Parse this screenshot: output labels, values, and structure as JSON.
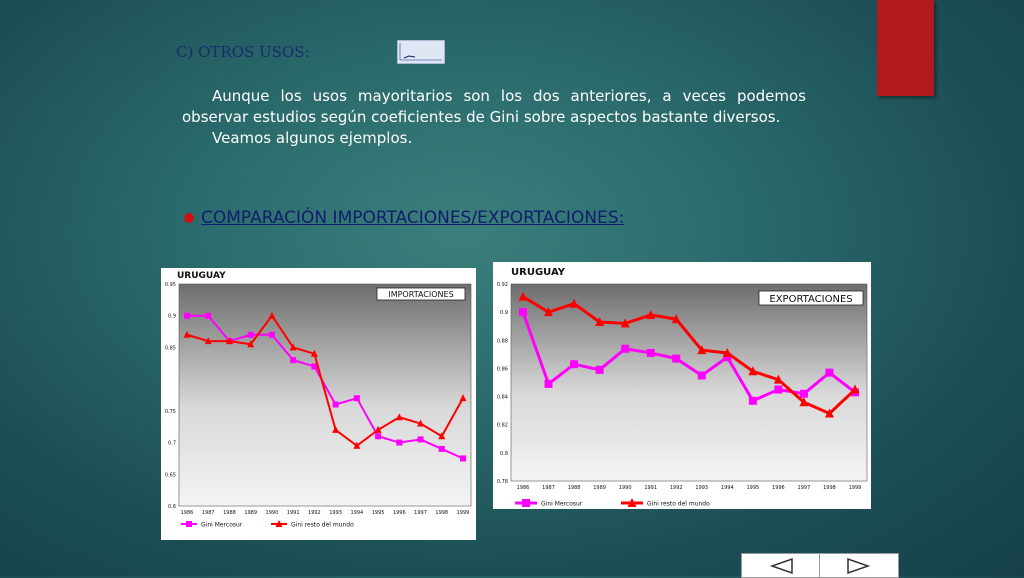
{
  "slide": {
    "section_title": "C) OTROS USOS:",
    "paragraph1": "Aunque los usos mayoritarios son los dos anteriores, a veces podemos observar estudios según coeficientes de Gini sobre aspectos bastante diversos.",
    "paragraph2": "Veamos algunos ejemplos.",
    "heading": "COMPARACIÓN IMPORTACIONES/EXPORTACIONES:"
  },
  "colors": {
    "series1": "#ff00ff",
    "series2": "#ff0000",
    "accent_tab": "#b0191d",
    "heading": "#101d6e"
  },
  "chart_data": [
    {
      "type": "line",
      "title": "URUGUAY",
      "annotation": "IMPORTACIONES",
      "x": [
        "1986",
        "1987",
        "1988",
        "1989",
        "1990",
        "1991",
        "1992",
        "1993",
        "1994",
        "1995",
        "1996",
        "1997",
        "1998",
        "1999"
      ],
      "ylim": [
        0.6,
        0.95
      ],
      "yticks": [
        "0.95",
        "0.9",
        "0.85",
        "0.75",
        "0.7",
        "0.65",
        "0.6"
      ],
      "ytick_values": [
        0.95,
        0.9,
        0.85,
        0.75,
        0.7,
        0.65,
        0.6
      ],
      "series": [
        {
          "name": "Gini Mercosur",
          "marker": "square",
          "values": [
            0.9,
            0.9,
            0.86,
            0.87,
            0.87,
            0.83,
            0.82,
            0.76,
            0.77,
            0.71,
            0.7,
            0.705,
            0.69,
            0.675
          ]
        },
        {
          "name": "Gini resto del mundo",
          "marker": "triangle",
          "values": [
            0.87,
            0.86,
            0.86,
            0.855,
            0.9,
            0.85,
            0.84,
            0.72,
            0.695,
            0.72,
            0.74,
            0.73,
            0.71,
            0.77
          ]
        }
      ],
      "legend": "bottom"
    },
    {
      "type": "line",
      "title": "URUGUAY",
      "annotation": "EXPORTACIONES",
      "x": [
        "1986",
        "1987",
        "1988",
        "1989",
        "1990",
        "1991",
        "1992",
        "1993",
        "1994",
        "1995",
        "1996",
        "1997",
        "1998",
        "1999"
      ],
      "ylim": [
        0.78,
        0.92
      ],
      "yticks": [
        "0.92",
        "0.9",
        "0.88",
        "0.86",
        "0.84",
        "0.82",
        "0.8",
        "0.78"
      ],
      "ytick_values": [
        0.92,
        0.9,
        0.88,
        0.86,
        0.84,
        0.82,
        0.8,
        0.78
      ],
      "series": [
        {
          "name": "Gini Mercosur",
          "marker": "square",
          "values": [
            0.9,
            0.849,
            0.863,
            0.859,
            0.874,
            0.871,
            0.867,
            0.855,
            0.868,
            0.837,
            0.845,
            0.842,
            0.857,
            0.843
          ]
        },
        {
          "name": "Gini resto del mundo",
          "marker": "triangle",
          "values": [
            0.911,
            0.9,
            0.906,
            0.893,
            0.892,
            0.898,
            0.895,
            0.873,
            0.871,
            0.858,
            0.852,
            0.836,
            0.828,
            0.845
          ]
        }
      ],
      "legend": "bottom"
    }
  ]
}
